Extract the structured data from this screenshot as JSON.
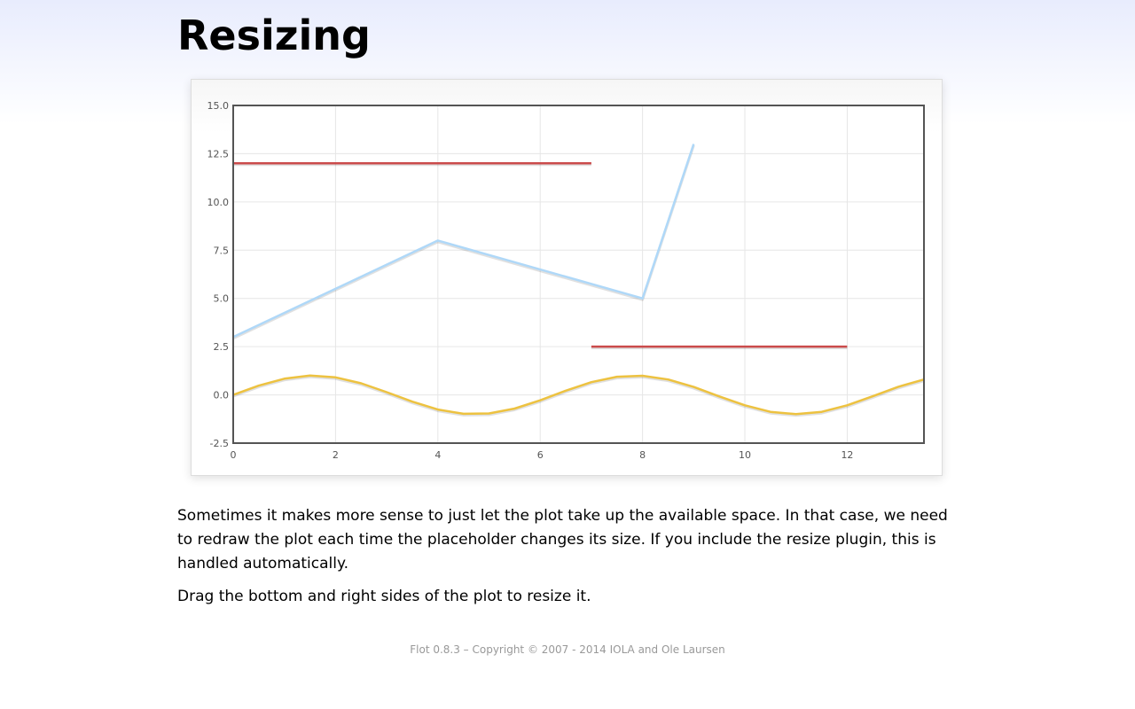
{
  "page": {
    "title": "Resizing",
    "paragraph1": "Sometimes it makes more sense to just let the plot take up the available space. In that case, we need to redraw the plot each time the placeholder changes its size. If you include the resize plugin, this is handled automatically.",
    "paragraph2": "Drag the bottom and right sides of the plot to resize it.",
    "footer": "Flot 0.8.3 – Copyright © 2007 - 2014 IOLA and Ole Laursen"
  },
  "chart_data": {
    "type": "line",
    "title": "",
    "xlabel": "",
    "ylabel": "",
    "xlim": [
      0,
      13.5
    ],
    "ylim": [
      -2.5,
      15
    ],
    "xticks": [
      0,
      2,
      4,
      6,
      8,
      10,
      12
    ],
    "yticks": [
      -2.5,
      0.0,
      2.5,
      5.0,
      7.5,
      10.0,
      12.5,
      15.0
    ],
    "ytick_labels": [
      "-2.5",
      "0.0",
      "2.5",
      "5.0",
      "7.5",
      "10.0",
      "12.5",
      "15.0"
    ],
    "grid": true,
    "series": [
      {
        "color": "#edc240",
        "points": [
          [
            0,
            0
          ],
          [
            0.5,
            0.48
          ],
          [
            1,
            0.84
          ],
          [
            1.5,
            1.0
          ],
          [
            2,
            0.91
          ],
          [
            2.5,
            0.6
          ],
          [
            3,
            0.14
          ],
          [
            3.5,
            -0.35
          ],
          [
            4,
            -0.76
          ],
          [
            4.5,
            -0.98
          ],
          [
            5,
            -0.96
          ],
          [
            5.5,
            -0.71
          ],
          [
            6,
            -0.28
          ],
          [
            6.5,
            0.22
          ],
          [
            7,
            0.66
          ],
          [
            7.5,
            0.94
          ],
          [
            8,
            0.99
          ],
          [
            8.5,
            0.8
          ],
          [
            9,
            0.41
          ],
          [
            9.5,
            -0.08
          ],
          [
            10,
            -0.54
          ],
          [
            10.5,
            -0.88
          ],
          [
            11,
            -1.0
          ],
          [
            11.5,
            -0.88
          ],
          [
            12,
            -0.54
          ],
          [
            12.5,
            -0.07
          ],
          [
            13,
            0.42
          ],
          [
            13.5,
            0.8
          ]
        ]
      },
      {
        "color": "#afd8f8",
        "points": [
          [
            0,
            3
          ],
          [
            4,
            8
          ],
          [
            8,
            5
          ],
          [
            9,
            13
          ]
        ]
      },
      {
        "color": "#cb4b4b",
        "segments": [
          [
            [
              0,
              12
            ],
            [
              7,
              12
            ]
          ],
          [
            [
              7,
              2.5
            ],
            [
              12,
              2.5
            ]
          ]
        ]
      }
    ]
  }
}
